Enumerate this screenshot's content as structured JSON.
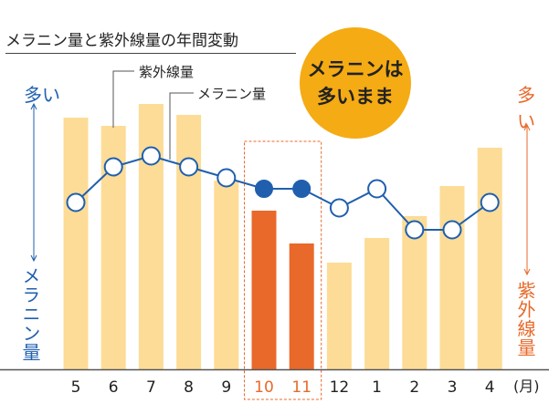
{
  "title": "メラニン量と紫外線量の年間変動",
  "left_axis": {
    "top": "多い",
    "bottom": "メラニン量",
    "color": "#1f5fae"
  },
  "right_axis": {
    "top": "多い",
    "bottom": "紫外線量",
    "color": "#e8692a"
  },
  "callouts": {
    "uv": "紫外線量",
    "melanin": "メラニン量"
  },
  "badge": {
    "line1": "メラニンは",
    "line2": "多いまま",
    "color": "#f5ab14"
  },
  "unit_label": "(月)",
  "chart_data": {
    "type": "bar+line",
    "categories": [
      "5",
      "6",
      "7",
      "8",
      "9",
      "10",
      "11",
      "12",
      "1",
      "2",
      "3",
      "4"
    ],
    "highlight": [
      "10",
      "11"
    ],
    "series": [
      {
        "name": "紫外線量",
        "type": "bar",
        "values": [
          92,
          89,
          97,
          93,
          69,
          58,
          46,
          39,
          48,
          56,
          67,
          81
        ],
        "color": "#fcdc96",
        "highlight_color": "#e8692a"
      },
      {
        "name": "メラニン量",
        "type": "line",
        "values": [
          61,
          74,
          78,
          74,
          70,
          66,
          66,
          59,
          66,
          51,
          51,
          61
        ],
        "color": "#1f5fae"
      }
    ],
    "ylim": [
      0,
      100
    ],
    "grid": false
  }
}
